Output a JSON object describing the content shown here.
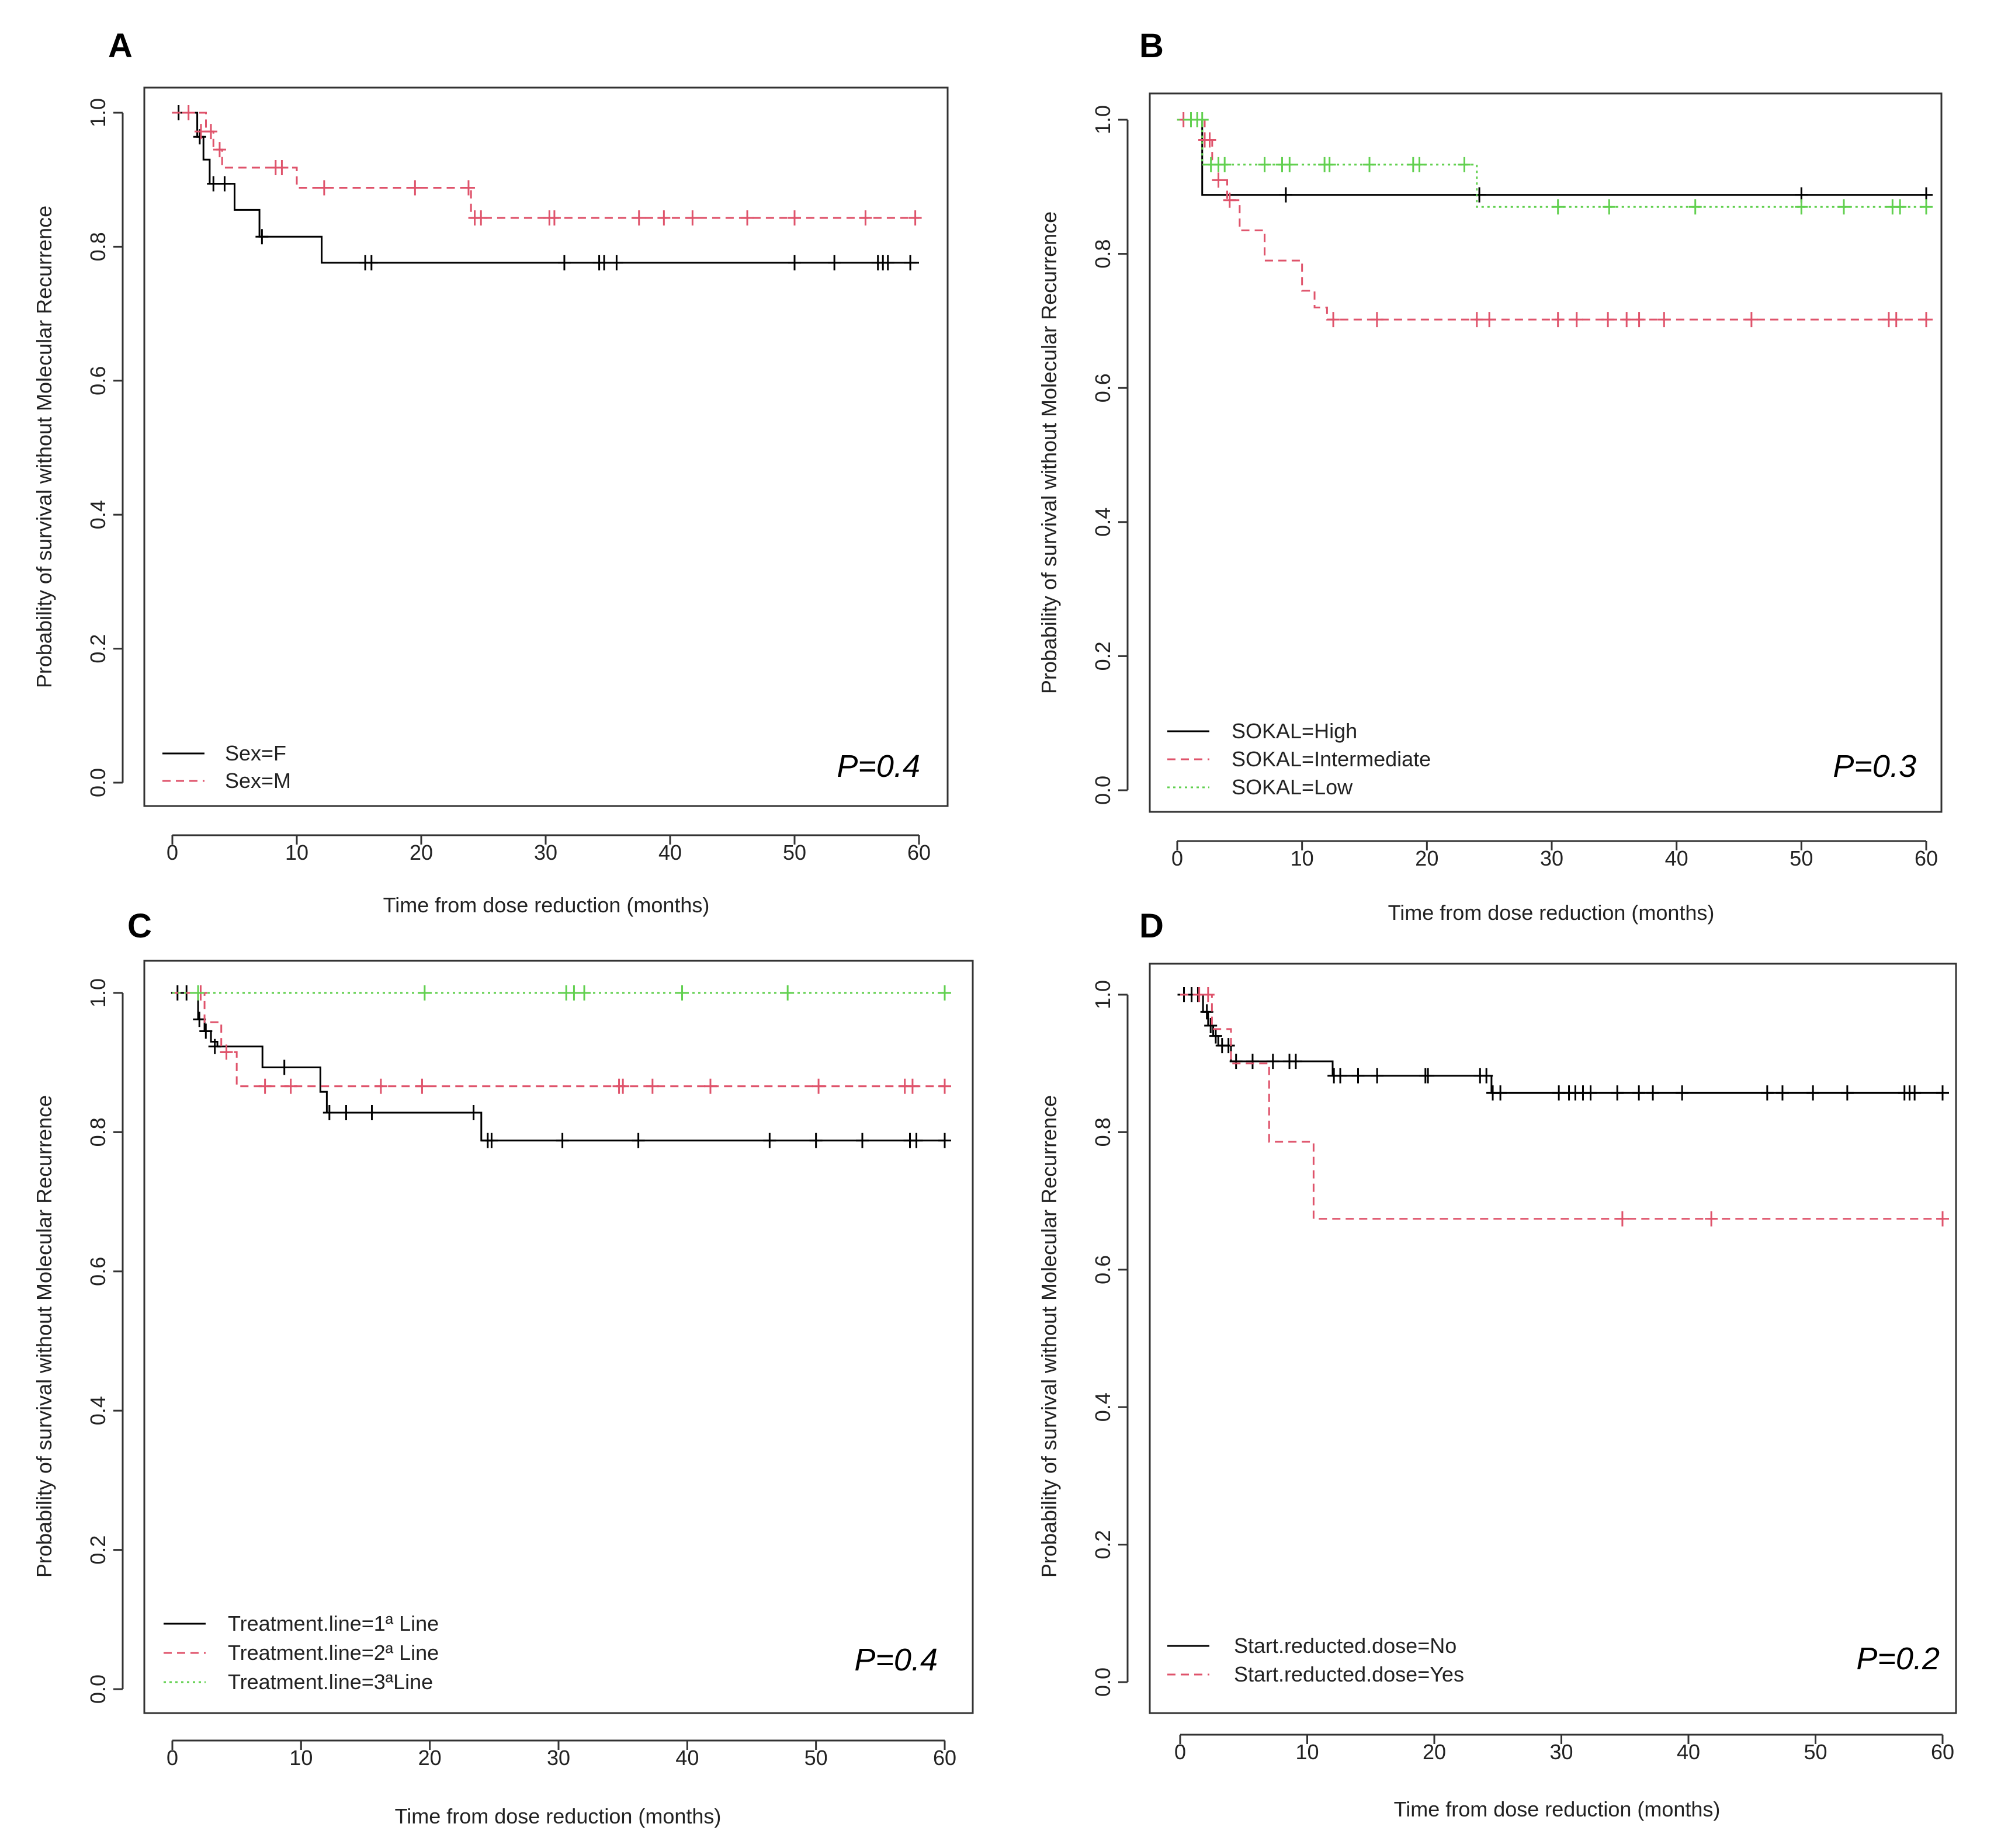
{
  "colors": {
    "series1": "#000000",
    "series2": "#df536b",
    "series3": "#61d04f"
  },
  "chart_data": [
    {
      "type": "line",
      "panel": "A",
      "xlabel": "Time from dose reduction (months)",
      "ylabel": "Probability of survival without Molecular Recurrence",
      "xlim": [
        0,
        60
      ],
      "ylim": [
        0,
        1
      ],
      "xticks": [
        "0",
        "10",
        "20",
        "30",
        "40",
        "50",
        "60"
      ],
      "yticks": [
        "0.0",
        "0.2",
        "0.4",
        "0.6",
        "0.8",
        "1.0"
      ],
      "p_value": "P=0.4",
      "legend_position": "bottom-left",
      "series": [
        {
          "name": "Sex=F",
          "color": "#000000",
          "dash": "solid",
          "x": [
            0,
            2,
            2.5,
            3,
            5,
            7,
            12,
            60
          ],
          "y": [
            1.0,
            0.964,
            0.93,
            0.894,
            0.855,
            0.815,
            0.776,
            0.776
          ],
          "censor_x": [
            0.5,
            2.2,
            3.3,
            4.2,
            7.2,
            15.5,
            16,
            31.5,
            34.3,
            34.7,
            35.7,
            50,
            53.2,
            56.7,
            57.1,
            57.5,
            59.3
          ],
          "censor_y": [
            1.0,
            0.964,
            0.894,
            0.894,
            0.815,
            0.776,
            0.776,
            0.776,
            0.776,
            0.776,
            0.776,
            0.776,
            0.776,
            0.776,
            0.776,
            0.776,
            0.776
          ]
        },
        {
          "name": "Sex=M",
          "color": "#df536b",
          "dash": "dashed",
          "x": [
            0,
            2.7,
            3.3,
            4,
            10,
            24,
            60
          ],
          "y": [
            1.0,
            0.972,
            0.945,
            0.918,
            0.888,
            0.843,
            0.843
          ],
          "censor_x": [
            1.3,
            2.3,
            3.1,
            3.8,
            8.3,
            8.8,
            12.2,
            19.5,
            23.8,
            24.3,
            24.8,
            30.3,
            30.7,
            37.5,
            39.5,
            41.8,
            46.2,
            50,
            55.7,
            59.7
          ],
          "censor_y": [
            1.0,
            0.972,
            0.972,
            0.945,
            0.918,
            0.918,
            0.888,
            0.888,
            0.888,
            0.843,
            0.843,
            0.843,
            0.843,
            0.843,
            0.843,
            0.843,
            0.843,
            0.843,
            0.843,
            0.843
          ]
        }
      ]
    },
    {
      "type": "line",
      "panel": "B",
      "xlabel": "Time from dose reduction (months)",
      "ylabel": "Probability of survival without Molecular Recurrence",
      "xlim": [
        0,
        60
      ],
      "ylim": [
        0,
        1
      ],
      "xticks": [
        "0",
        "10",
        "20",
        "30",
        "40",
        "50",
        "60"
      ],
      "yticks": [
        "0.0",
        "0.2",
        "0.4",
        "0.6",
        "0.8",
        "1.0"
      ],
      "p_value": "P=0.3",
      "legend_position": "bottom-left",
      "series": [
        {
          "name": "SOKAL=High",
          "color": "#000000",
          "dash": "solid",
          "x": [
            0,
            2,
            60
          ],
          "y": [
            1.0,
            0.888,
            0.888
          ],
          "censor_x": [
            8.7,
            24.2,
            50,
            60
          ],
          "censor_y": [
            0.888,
            0.888,
            0.888,
            0.888
          ]
        },
        {
          "name": "SOKAL=Intermediate",
          "color": "#df536b",
          "dash": "dashed",
          "x": [
            0,
            2.2,
            2.8,
            3.3,
            4,
            5,
            7,
            10,
            11,
            12,
            60
          ],
          "y": [
            1.0,
            0.97,
            0.94,
            0.91,
            0.88,
            0.835,
            0.79,
            0.745,
            0.72,
            0.702,
            0.702
          ],
          "censor_x": [
            0.5,
            2.2,
            2.6,
            3.3,
            4.2,
            12.5,
            16,
            24,
            25,
            30.5,
            32,
            34.5,
            36,
            37,
            39,
            46,
            57,
            57.6,
            60
          ],
          "censor_y": [
            1.0,
            0.97,
            0.97,
            0.91,
            0.88,
            0.702,
            0.702,
            0.702,
            0.702,
            0.702,
            0.702,
            0.702,
            0.702,
            0.702,
            0.702,
            0.702,
            0.702,
            0.702,
            0.702
          ]
        },
        {
          "name": "SOKAL=Low",
          "color": "#61d04f",
          "dash": "dotted",
          "x": [
            0,
            2,
            24,
            60
          ],
          "y": [
            1.0,
            0.933,
            0.87,
            0.87
          ],
          "censor_x": [
            1.1,
            1.6,
            2.0,
            2.7,
            3.3,
            3.8,
            7,
            8.4,
            9,
            11.8,
            12.2,
            15.4,
            18.9,
            19.4,
            23,
            30.5,
            34.6,
            41.5,
            50,
            53.4,
            57.3,
            57.9,
            60
          ],
          "censor_y": [
            1.0,
            1.0,
            1.0,
            0.933,
            0.933,
            0.933,
            0.933,
            0.933,
            0.933,
            0.933,
            0.933,
            0.933,
            0.933,
            0.933,
            0.933,
            0.87,
            0.87,
            0.87,
            0.87,
            0.87,
            0.87,
            0.87,
            0.87
          ]
        }
      ]
    },
    {
      "type": "line",
      "panel": "C",
      "xlabel": "Time from dose reduction (months)",
      "ylabel": "Probability of survival without Molecular Recurrence",
      "xlim": [
        0,
        60
      ],
      "ylim": [
        0,
        1
      ],
      "xticks": [
        "0",
        "10",
        "20",
        "30",
        "40",
        "50",
        "60"
      ],
      "yticks": [
        "0.0",
        "0.2",
        "0.4",
        "0.6",
        "0.8",
        "1.0"
      ],
      "p_value": "P=0.4",
      "legend_position": "bottom-left",
      "series": [
        {
          "name": "Treatment.line=1ª Line",
          "color": "#000000",
          "dash": "solid",
          "x": [
            0,
            2,
            2.5,
            3,
            3.5,
            7,
            11.5,
            12,
            24,
            60
          ],
          "y": [
            1.0,
            0.962,
            0.945,
            0.93,
            0.923,
            0.893,
            0.858,
            0.828,
            0.788,
            0.788
          ],
          "censor_x": [
            0.4,
            1.1,
            2.1,
            2.6,
            3.3,
            8.7,
            12.2,
            13.5,
            15.5,
            23.4,
            24.5,
            24.8,
            30.3,
            36.2,
            46.4,
            50,
            53.6,
            57.3,
            57.8,
            60
          ],
          "censor_y": [
            1.0,
            1.0,
            0.962,
            0.945,
            0.923,
            0.893,
            0.828,
            0.828,
            0.828,
            0.828,
            0.788,
            0.788,
            0.788,
            0.788,
            0.788,
            0.788,
            0.788,
            0.788,
            0.788,
            0.788
          ]
        },
        {
          "name": "Treatment.line=2ª Line",
          "color": "#df536b",
          "dash": "dashed",
          "x": [
            0,
            2.5,
            3.8,
            5,
            60
          ],
          "y": [
            1.0,
            0.958,
            0.915,
            0.866,
            0.866
          ],
          "censor_x": [
            2.2,
            4.2,
            7.2,
            9.2,
            16.2,
            19.4,
            34.7,
            35,
            37.3,
            41.8,
            50.2,
            56.9,
            57.5,
            60
          ],
          "censor_y": [
            1.0,
            0.915,
            0.866,
            0.866,
            0.866,
            0.866,
            0.866,
            0.866,
            0.866,
            0.866,
            0.866,
            0.866,
            0.866,
            0.866
          ]
        },
        {
          "name": "Treatment.line=3ªLine",
          "color": "#61d04f",
          "dash": "dotted",
          "x": [
            0,
            60
          ],
          "y": [
            1.0,
            1.0
          ],
          "censor_x": [
            2,
            19.6,
            30.6,
            31.2,
            32,
            39.6,
            47.8,
            60
          ],
          "censor_y": [
            1.0,
            1.0,
            1.0,
            1.0,
            1.0,
            1.0,
            1.0,
            1.0
          ]
        }
      ]
    },
    {
      "type": "line",
      "panel": "D",
      "xlabel": "Time from dose reduction (months)",
      "ylabel": "Probability of survival without Molecular Recurrence",
      "xlim": [
        0,
        60
      ],
      "ylim": [
        0,
        1
      ],
      "xticks": [
        "0",
        "10",
        "20",
        "30",
        "40",
        "50",
        "60"
      ],
      "yticks": [
        "0.0",
        "0.2",
        "0.4",
        "0.6",
        "0.8",
        "1.0"
      ],
      "p_value": "P=0.2",
      "legend_position": "bottom-left",
      "series": [
        {
          "name": "Start.reducted.dose=No",
          "color": "#000000",
          "dash": "solid",
          "x": [
            0,
            1.8,
            2.2,
            2.6,
            3,
            4,
            12,
            24.5,
            60
          ],
          "y": [
            1.0,
            0.975,
            0.955,
            0.94,
            0.926,
            0.903,
            0.882,
            0.857,
            0.857
          ],
          "censor_x": [
            0.3,
            0.9,
            1.4,
            2.1,
            2.4,
            2.8,
            3.3,
            3.8,
            4.4,
            5.7,
            7.3,
            8.6,
            9.1,
            12.1,
            12.6,
            14,
            15.5,
            19.3,
            19.5,
            23.6,
            24.1,
            24.6,
            25.2,
            29.8,
            30.6,
            31.1,
            31.7,
            32.3,
            34.4,
            36.1,
            37.2,
            39.5,
            46.2,
            47.4,
            49.8,
            52.5,
            57,
            57.4,
            57.8,
            60
          ],
          "censor_y": [
            1.0,
            1.0,
            1.0,
            0.975,
            0.955,
            0.94,
            0.926,
            0.926,
            0.903,
            0.903,
            0.903,
            0.903,
            0.903,
            0.882,
            0.882,
            0.882,
            0.882,
            0.882,
            0.882,
            0.882,
            0.882,
            0.857,
            0.857,
            0.857,
            0.857,
            0.857,
            0.857,
            0.857,
            0.857,
            0.857,
            0.857,
            0.857,
            0.857,
            0.857,
            0.857,
            0.857,
            0.857,
            0.857,
            0.857,
            0.857
          ]
        },
        {
          "name": "Start.reducted.dose=Yes",
          "color": "#df536b",
          "dash": "dashed",
          "x": [
            0,
            2.5,
            4,
            7,
            10.5,
            60
          ],
          "y": [
            1.0,
            0.95,
            0.9,
            0.786,
            0.674,
            0.674
          ],
          "censor_x": [
            1.5,
            2.2,
            34.8,
            41.8,
            60
          ],
          "censor_y": [
            1.0,
            1.0,
            0.674,
            0.674,
            0.674
          ]
        }
      ]
    }
  ]
}
